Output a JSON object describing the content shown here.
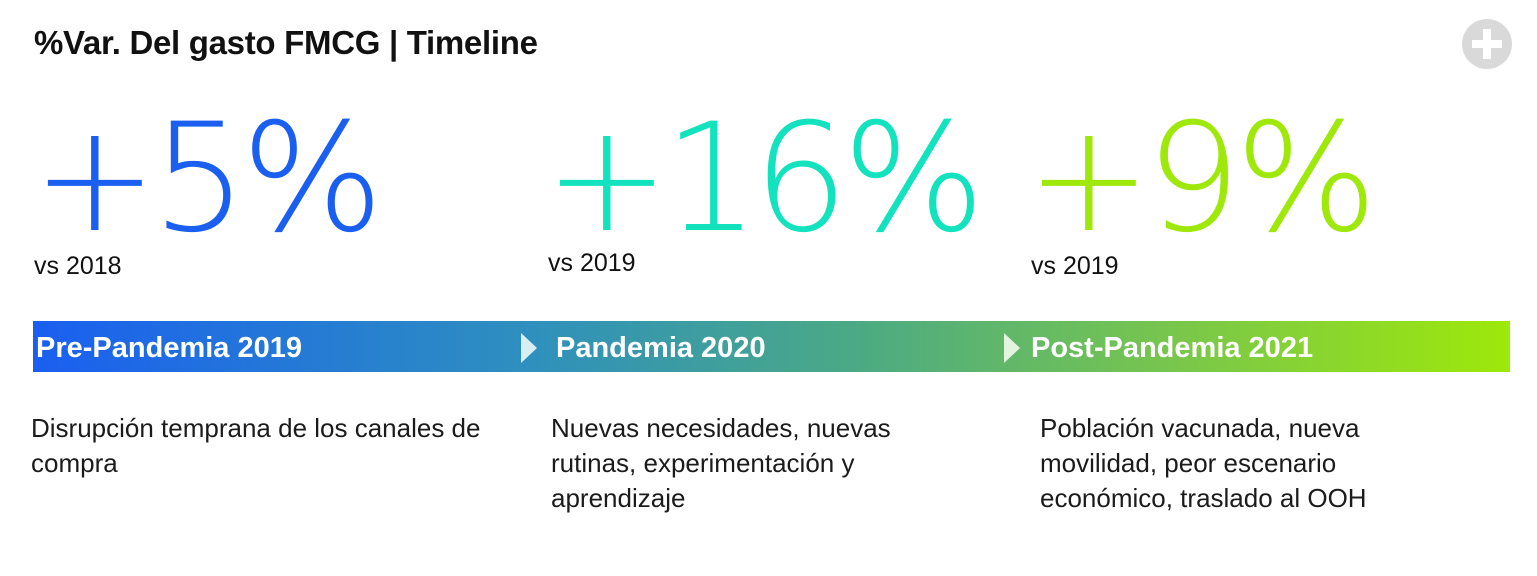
{
  "header": {
    "title": "%Var. Del gasto FMCG | Timeline",
    "add_icon": "plus-circle-icon"
  },
  "stats": [
    {
      "value": "+5%",
      "comparison": "vs 2018",
      "color": "#1a5ff0"
    },
    {
      "value": "+16%",
      "comparison": "vs 2019",
      "color": "#12e2bd"
    },
    {
      "value": "+9%",
      "comparison": "vs 2019",
      "color": "#9ee80a"
    }
  ],
  "timeline": {
    "gradient_colors": [
      "#1a5ff0",
      "#4aa986",
      "#9ee80a"
    ],
    "phases": [
      {
        "label": "Pre-Pandemia 2019",
        "description": "Disrupción temprana de los canales de compra"
      },
      {
        "label": "Pandemia 2020",
        "description": "Nuevas necesidades, nuevas rutinas, experimentación y aprendizaje"
      },
      {
        "label": "Post-Pandemia 2021",
        "description": "Población vacunada, nueva movilidad, peor escenario económico, traslado al OOH"
      }
    ]
  }
}
